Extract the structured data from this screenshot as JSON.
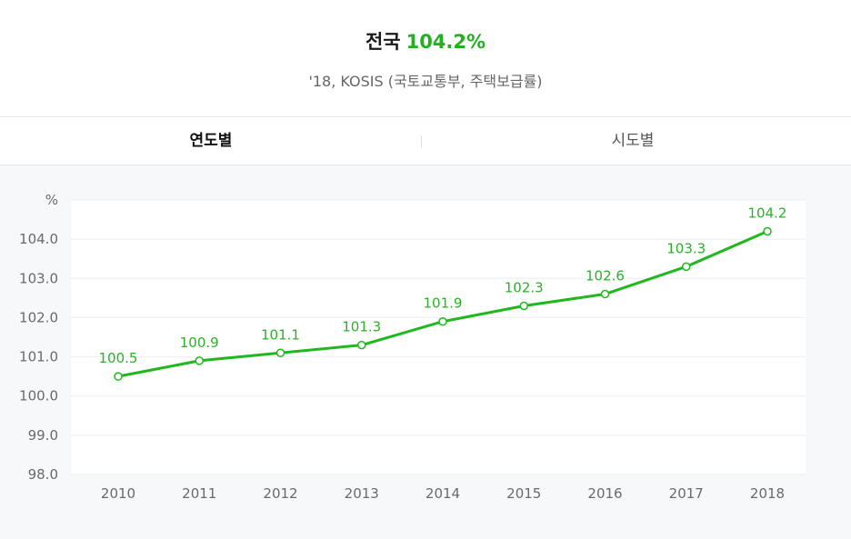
{
  "header": {
    "region": "전국",
    "value": "104.2%",
    "source": "'18, KOSIS (국토교통부, 주택보급률)"
  },
  "tabs": [
    {
      "label": "연도별",
      "active": true
    },
    {
      "label": "시도별",
      "active": false
    }
  ],
  "colors": {
    "accent": "#21b11f",
    "line": "#20b81e",
    "plot_background": "#ffffff",
    "page_background": "#f6f8fa"
  },
  "chart_data": {
    "type": "line",
    "title": "",
    "xlabel": "",
    "ylabel": "%",
    "x": [
      "2010",
      "2011",
      "2012",
      "2013",
      "2014",
      "2015",
      "2016",
      "2017",
      "2018"
    ],
    "series": [
      {
        "values": [
          100.5,
          100.9,
          101.1,
          101.3,
          101.9,
          102.3,
          102.6,
          103.3,
          104.2
        ]
      }
    ],
    "y_ticks": [
      "98.0",
      "99.0",
      "100.0",
      "101.0",
      "102.0",
      "103.0",
      "104.0"
    ],
    "ylim": [
      98.0,
      105.0
    ],
    "grid": true,
    "data_labels": true,
    "legend": "none"
  }
}
